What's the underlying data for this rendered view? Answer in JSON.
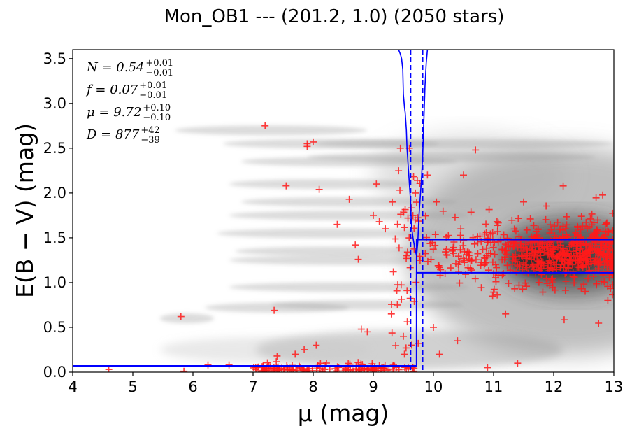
{
  "chart_data": {
    "type": "scatter",
    "title": "Mon_OB1 --- (201.2, 1.0) (2050 stars)",
    "xlabel": "μ (mag)",
    "ylabel": "E(B − V) (mag)",
    "xlim": [
      4,
      13
    ],
    "ylim": [
      0,
      3.6
    ],
    "x_ticks": [
      "4",
      "5",
      "6",
      "7",
      "8",
      "9",
      "10",
      "11",
      "12",
      "13"
    ],
    "y_ticks": [
      "0.0",
      "0.5",
      "1.0",
      "1.5",
      "2.0",
      "2.5",
      "3.0",
      "3.5"
    ],
    "grid": false,
    "legend": "none",
    "annotations": [
      {
        "sym": "N",
        "val": "0.54",
        "up": "+0.01",
        "lo": "−0.01"
      },
      {
        "sym": "f",
        "val": "0.07",
        "up": "+0.01",
        "lo": "−0.01"
      },
      {
        "sym": "μ",
        "val": "9.72",
        "up": "+0.10",
        "lo": "−0.10"
      },
      {
        "sym": "D",
        "val": "877",
        "up": "+42",
        "lo": "−39"
      }
    ],
    "model": {
      "step_x": 9.72,
      "foreground_ebv": 0.07,
      "background_ebv_low": 1.11,
      "background_ebv_high": 1.48,
      "mu_low": 9.62,
      "mu_high": 9.82
    },
    "stars_sample": [
      [
        4.6,
        0.03
      ],
      [
        5.8,
        0.62
      ],
      [
        5.85,
        0.01
      ],
      [
        6.25,
        0.08
      ],
      [
        6.6,
        0.08
      ],
      [
        7.2,
        2.75
      ],
      [
        7.35,
        0.69
      ],
      [
        7.4,
        0.18
      ],
      [
        7.7,
        0.2
      ],
      [
        7.85,
        0.25
      ],
      [
        7.9,
        2.52
      ],
      [
        7.9,
        2.55
      ],
      [
        8.0,
        2.57
      ],
      [
        8.05,
        0.3
      ],
      [
        8.1,
        2.04
      ],
      [
        7.55,
        2.08
      ],
      [
        8.4,
        1.65
      ],
      [
        8.6,
        1.93
      ],
      [
        8.7,
        1.42
      ],
      [
        8.75,
        1.26
      ],
      [
        8.8,
        0.48
      ],
      [
        8.9,
        0.45
      ],
      [
        9.0,
        1.75
      ],
      [
        9.05,
        2.1
      ],
      [
        9.1,
        1.68
      ],
      [
        9.2,
        1.6
      ],
      [
        9.3,
        0.65
      ],
      [
        9.4,
        0.75
      ],
      [
        9.5,
        0.4
      ],
      [
        9.55,
        1.3
      ],
      [
        9.45,
        2.5
      ],
      [
        9.6,
        2.5
      ],
      [
        9.7,
        2.0
      ],
      [
        9.9,
        2.2
      ],
      [
        10.0,
        0.5
      ],
      [
        10.05,
        1.9
      ],
      [
        10.1,
        0.2
      ],
      [
        10.4,
        0.35
      ],
      [
        10.5,
        2.2
      ],
      [
        10.7,
        2.48
      ],
      [
        10.9,
        0.05
      ],
      [
        11.0,
        1.1
      ],
      [
        11.2,
        0.65
      ],
      [
        11.4,
        0.1
      ],
      [
        11.5,
        1.9
      ],
      [
        11.7,
        1.1
      ],
      [
        12.0,
        1.4
      ],
      [
        12.2,
        1.6
      ],
      [
        12.5,
        1.2
      ],
      [
        12.7,
        1.5
      ],
      [
        12.9,
        0.8
      ]
    ]
  }
}
